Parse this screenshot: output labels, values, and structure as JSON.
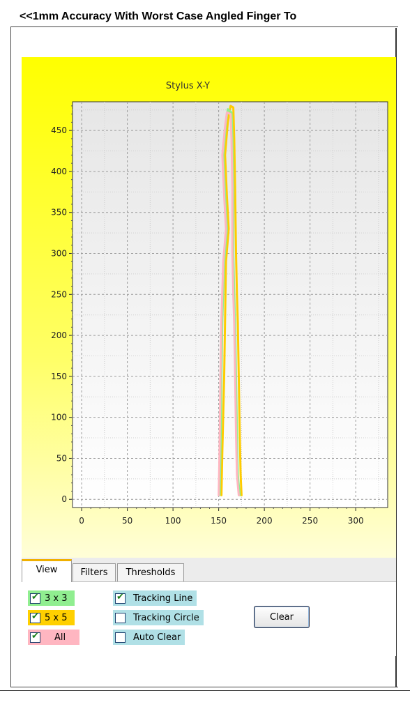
{
  "header": {
    "title": "<<1mm Accuracy With Worst Case Angled Finger To"
  },
  "chart": {
    "title": "Stylus  X-Y"
  },
  "chart_data": {
    "type": "line",
    "title": "Stylus  X-Y",
    "xlabel": "",
    "ylabel": "",
    "xlim": [
      -10,
      335
    ],
    "ylim": [
      -10,
      485
    ],
    "x_ticks": [
      0,
      50,
      100,
      150,
      200,
      250,
      300
    ],
    "y_ticks": [
      0,
      50,
      100,
      150,
      200,
      250,
      300,
      350,
      400,
      450
    ],
    "grid": true,
    "series": [
      {
        "color": "#ffcc00",
        "points": [
          [
            153,
            5
          ],
          [
            154,
            60
          ],
          [
            156,
            150
          ],
          [
            157,
            220
          ],
          [
            158,
            290
          ],
          [
            161,
            330
          ],
          [
            159,
            370
          ],
          [
            157,
            420
          ],
          [
            160,
            460
          ],
          [
            163,
            480
          ],
          [
            166,
            478
          ],
          [
            167,
            440
          ],
          [
            168,
            380
          ],
          [
            169,
            300
          ],
          [
            170,
            250
          ],
          [
            171,
            215
          ],
          [
            172,
            150
          ],
          [
            173,
            80
          ],
          [
            174,
            30
          ],
          [
            175,
            5
          ]
        ]
      },
      {
        "color": "#90ee90",
        "points": [
          [
            151,
            5
          ],
          [
            152,
            60
          ],
          [
            153,
            150
          ],
          [
            154,
            220
          ],
          [
            156,
            290
          ],
          [
            159,
            330
          ],
          [
            157,
            370
          ],
          [
            155,
            420
          ],
          [
            158,
            460
          ],
          [
            160,
            476
          ],
          [
            164,
            472
          ],
          [
            165,
            440
          ],
          [
            166,
            380
          ],
          [
            166,
            300
          ],
          [
            167,
            250
          ],
          [
            168,
            215
          ],
          [
            169,
            150
          ],
          [
            170,
            80
          ],
          [
            171,
            30
          ],
          [
            173,
            5
          ]
        ]
      },
      {
        "color": "#ffb6c1",
        "points": [
          [
            150,
            5
          ],
          [
            151,
            60
          ],
          [
            152,
            150
          ],
          [
            153,
            220
          ],
          [
            155,
            290
          ],
          [
            158,
            330
          ],
          [
            156,
            370
          ],
          [
            154,
            420
          ],
          [
            157,
            455
          ],
          [
            159,
            472
          ],
          [
            163,
            470
          ],
          [
            164,
            440
          ],
          [
            165,
            380
          ],
          [
            165,
            300
          ],
          [
            166,
            250
          ],
          [
            167,
            215
          ],
          [
            168,
            150
          ],
          [
            169,
            80
          ],
          [
            170,
            30
          ],
          [
            172,
            5
          ]
        ]
      }
    ]
  },
  "tabs": [
    {
      "label": "View",
      "active": true
    },
    {
      "label": "Filters",
      "active": false
    },
    {
      "label": "Thresholds",
      "active": false
    }
  ],
  "options": {
    "col1": [
      {
        "label": "3 x 3",
        "checked": true,
        "color": "#90ee90"
      },
      {
        "label": "5 x 5",
        "checked": true,
        "color": "#ffd000"
      },
      {
        "label": "All",
        "checked": true,
        "color": "#ffb6c1"
      }
    ],
    "col2": [
      {
        "label": "Tracking Line",
        "checked": true,
        "color": "#b0e0e6"
      },
      {
        "label": "Tracking Circle",
        "checked": false,
        "color": "#b0e0e6"
      },
      {
        "label": "Auto Clear",
        "checked": false,
        "color": "#b0e0e6"
      }
    ]
  },
  "buttons": {
    "clear_label": "Clear"
  }
}
